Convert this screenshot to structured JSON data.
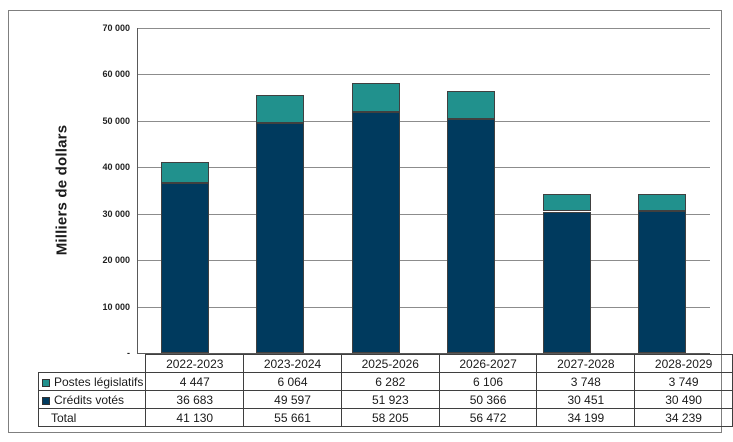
{
  "colors": {
    "teal": "#21918D",
    "navy": "#003A5E",
    "grid": "#8C8C8C",
    "axis": "#595959",
    "frame": "#7F7F7F",
    "table_border": "#3F3F3F",
    "text": "#1A1A1A"
  },
  "y_axis": {
    "title": "Milliers de dollars",
    "tick_labels": [
      "70 000",
      "60 000",
      "50 000",
      "40 000",
      "30 000",
      "20 000",
      "10 000",
      "-"
    ]
  },
  "chart_data": {
    "type": "bar",
    "stacked": true,
    "title": "",
    "xlabel": "",
    "ylabel": "Milliers de dollars",
    "ylim": [
      0,
      70000
    ],
    "grid": true,
    "legend_position": "table-left",
    "categories": [
      "2022-2023",
      "2023-2024",
      "2025-2026",
      "2026-2027",
      "2027-2028",
      "2028-2029"
    ],
    "series": [
      {
        "name": "Postes législatifs",
        "color_key": "teal",
        "values": [
          4447,
          6064,
          6282,
          6106,
          3748,
          3749
        ],
        "labels": [
          "4 447",
          "6 064",
          "6 282",
          "6 106",
          "3 748",
          "3 749"
        ]
      },
      {
        "name": "Crédits votés",
        "color_key": "navy",
        "values": [
          36683,
          49597,
          51923,
          50366,
          30451,
          30490
        ],
        "labels": [
          "36 683",
          "49 597",
          "51 923",
          "50 366",
          "30 451",
          "30 490"
        ]
      }
    ],
    "totals": {
      "name": "Total",
      "values": [
        41130,
        55661,
        58205,
        56472,
        34199,
        34239
      ],
      "labels": [
        "41 130",
        "55 661",
        "58 205",
        "56 472",
        "34 199",
        "34 239"
      ]
    }
  }
}
